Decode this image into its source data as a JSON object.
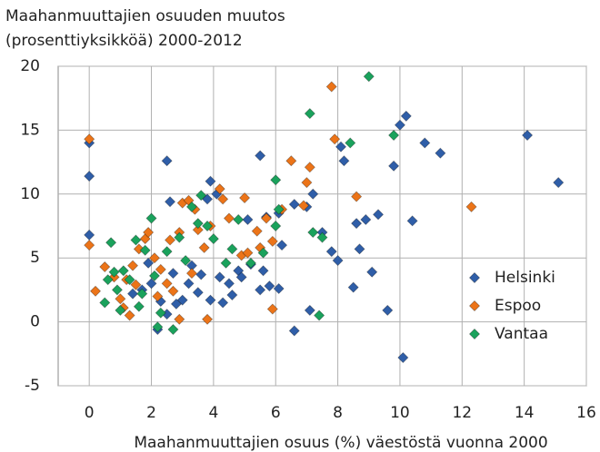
{
  "chart_data": {
    "type": "scatter",
    "title": [
      "Maahanmuuttajien osuuden muutos",
      "(prosenttiyksikköä) 2000-2012"
    ],
    "x_label": "Maahanmuuttajien osuus (%) väestöstä vuonna 2000",
    "xlim": [
      -1,
      16
    ],
    "xticks": [
      0,
      2,
      4,
      6,
      8,
      10,
      12,
      14,
      16
    ],
    "ylim": [
      -5,
      20
    ],
    "yticks": [
      -5,
      0,
      5,
      10,
      15,
      20
    ],
    "grid": true,
    "legend": "right",
    "series": [
      {
        "name": "Helsinki",
        "color": "#2f5ea8",
        "x": [
          0,
          0,
          0,
          2.5,
          2.6,
          3.8,
          3.9,
          4.1,
          5.5,
          5.1,
          5.7,
          6.1,
          6.6,
          7,
          7.2,
          7.5,
          7.8,
          8,
          8.1,
          8.2,
          8.6,
          8.7,
          8.5,
          8.9,
          9.1,
          9.3,
          9.6,
          9.8,
          10,
          10.2,
          10.1,
          10.4,
          10.8,
          11.3,
          14.1,
          15.1,
          6.6,
          7.1,
          6.2,
          5.8,
          5.5,
          6.1,
          5.2,
          4.8,
          4.5,
          4.3,
          4.6,
          3.9,
          3.5,
          3.2,
          3,
          2.8,
          2.2,
          2.5,
          1.7,
          2,
          2.3,
          1.4,
          1.9,
          3.3,
          4.9,
          5.6,
          3.6,
          2.7,
          4.2
        ],
        "values": [
          14,
          11.4,
          6.8,
          12.6,
          9.4,
          9.6,
          11,
          10,
          13,
          8,
          8.2,
          8.5,
          9.2,
          9,
          10,
          7,
          5.5,
          4.8,
          13.7,
          12.6,
          7.7,
          5.7,
          2.7,
          8,
          3.9,
          8.4,
          0.9,
          12.2,
          15.4,
          16.1,
          -2.8,
          7.9,
          14,
          13.2,
          14.6,
          10.9,
          -0.7,
          0.9,
          6,
          2.8,
          2.5,
          2.6,
          4.5,
          4,
          3,
          1.5,
          2.1,
          1.7,
          2.3,
          3,
          1.7,
          1.4,
          -0.6,
          0.6,
          2.5,
          3,
          1.6,
          2.2,
          4.6,
          4.4,
          3.5,
          4,
          3.7,
          3.8,
          3.5
        ]
      },
      {
        "name": "Espoo",
        "color": "#ec7418",
        "x": [
          0,
          0,
          0.2,
          0.5,
          0.8,
          1,
          1.1,
          1.3,
          1.4,
          1.6,
          1.8,
          1.9,
          2.1,
          2.3,
          2.5,
          2.7,
          2.9,
          3,
          3.2,
          3.4,
          3.5,
          3.7,
          3.8,
          3.9,
          4.2,
          4.3,
          4.5,
          4.9,
          5,
          5.1,
          5.4,
          5.5,
          5.7,
          5.9,
          5.9,
          6.2,
          6.5,
          6.9,
          7,
          7.1,
          7.8,
          7.9,
          8.6,
          12.3,
          2.9,
          1.5,
          2.2,
          3.3,
          2.6,
          1.2
        ],
        "values": [
          14.3,
          6,
          2.4,
          4.3,
          3.5,
          1.8,
          1.1,
          0.5,
          4.4,
          5.7,
          6.5,
          7,
          5,
          4.1,
          3,
          2.4,
          7,
          9.3,
          9.5,
          8.8,
          7.2,
          5.8,
          0.2,
          7.5,
          10.4,
          9.6,
          8.1,
          5.2,
          9.7,
          5.4,
          7.1,
          5.8,
          8.1,
          1,
          6.3,
          8.8,
          12.6,
          9.1,
          10.9,
          12.1,
          18.4,
          14.3,
          9.8,
          9,
          0.2,
          2.9,
          2,
          3.8,
          6.4,
          3.3
        ]
      },
      {
        "name": "Vantaa",
        "color": "#1aa25c",
        "x": [
          0.5,
          0.6,
          0.7,
          0.9,
          1,
          1.1,
          1.3,
          1.5,
          1.7,
          1.8,
          2,
          2.1,
          2.3,
          2.2,
          2.5,
          2.7,
          2.9,
          3.1,
          3.3,
          3.5,
          3.6,
          3.8,
          4,
          4.4,
          4.6,
          4.8,
          5.2,
          5.6,
          6,
          6,
          6.1,
          7.1,
          7.2,
          7.4,
          7.5,
          8.4,
          9,
          9.8,
          1.6,
          0.8
        ],
        "values": [
          1.5,
          3.3,
          6.2,
          2.5,
          0.9,
          4,
          3.3,
          6.4,
          2.2,
          5.6,
          8.1,
          3.6,
          0.7,
          -0.4,
          5.5,
          -0.6,
          6.6,
          4.8,
          9,
          7.7,
          9.9,
          7.5,
          6.5,
          4.6,
          5.7,
          8,
          4.6,
          5.4,
          11.1,
          7.5,
          8.8,
          16.3,
          7,
          0.5,
          6.6,
          14,
          19.2,
          14.6,
          1.2,
          3.9
        ]
      }
    ]
  }
}
